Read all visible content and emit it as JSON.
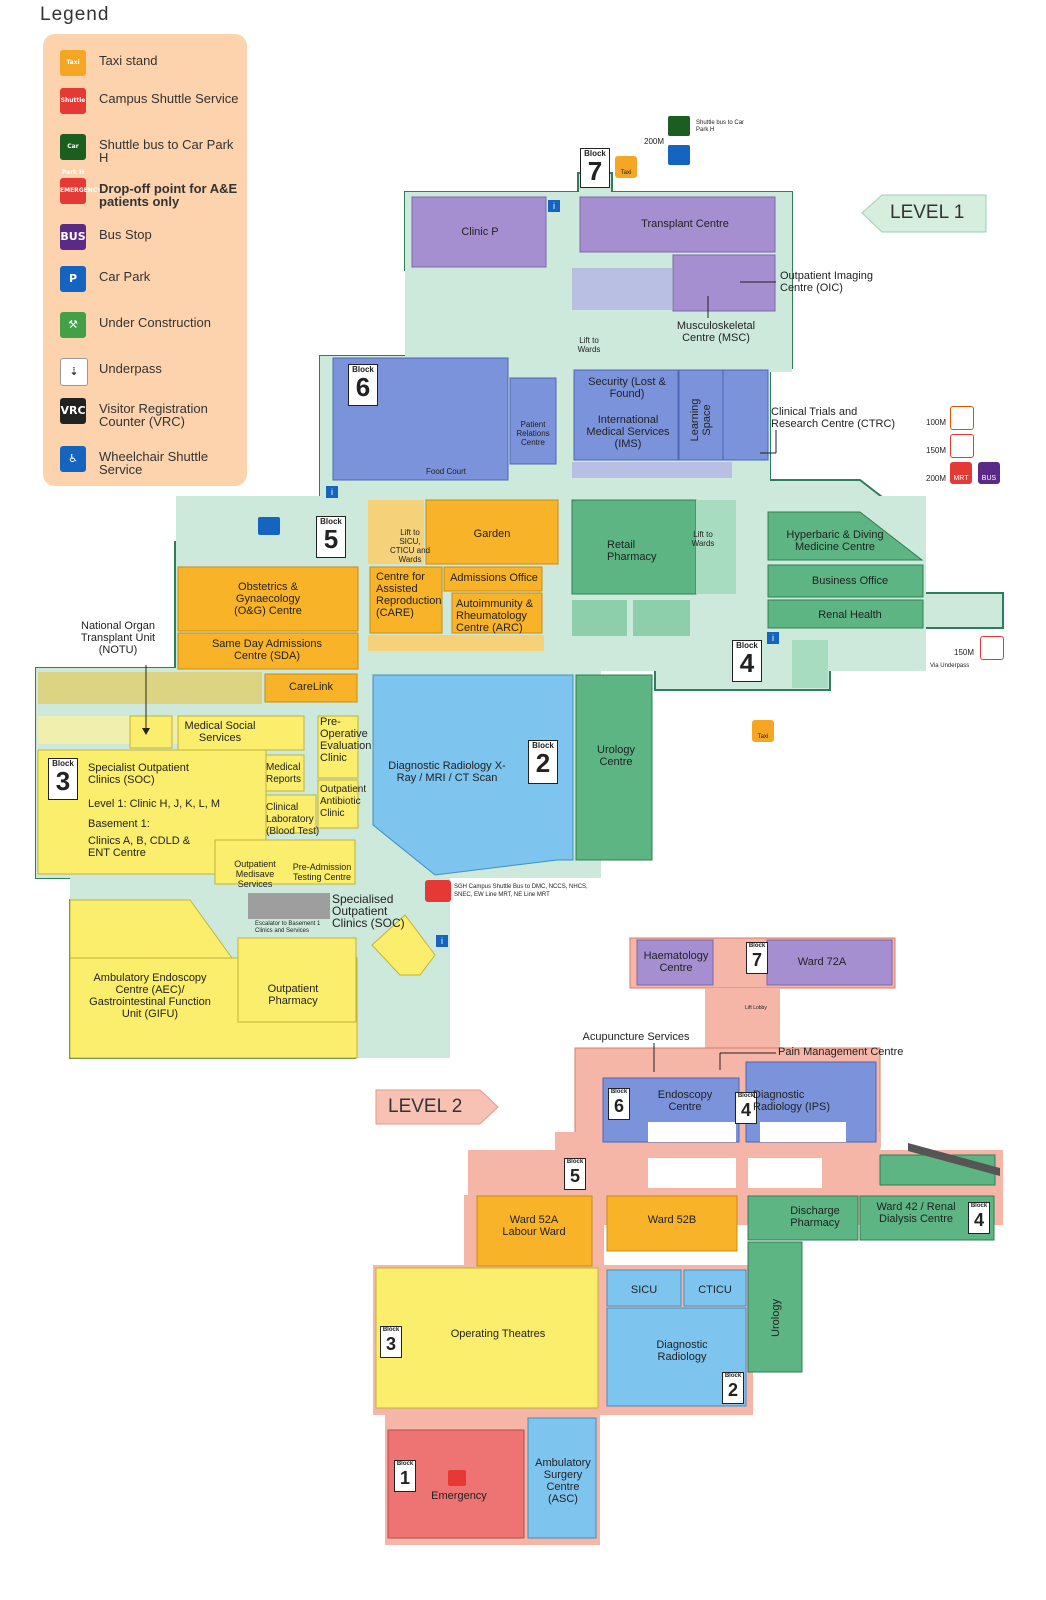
{
  "legend": {
    "title": "Legend",
    "items": [
      {
        "label": "Taxi stand",
        "icon": "taxi-icon",
        "color": "#f5a623",
        "glyph": "Taxi"
      },
      {
        "label": "Campus Shuttle Service",
        "icon": "campus-shuttle-icon",
        "color": "#e53935",
        "glyph": "Shuttle"
      },
      {
        "label": "Shuttle bus to Car Park H",
        "icon": "car-park-shuttle-icon",
        "color": "#1b5e20",
        "glyph": "Car Park H"
      },
      {
        "label": "Drop-off point for A&E patients only",
        "icon": "emergency-dropoff-icon",
        "color": "#e53935",
        "glyph": "EMERGENCY",
        "bold": true
      },
      {
        "label": "Bus Stop",
        "icon": "bus-stop-icon",
        "color": "#5b2a86",
        "glyph": "BUS"
      },
      {
        "label": "Car Park",
        "icon": "car-park-icon",
        "color": "#1565c0",
        "glyph": "P"
      },
      {
        "label": "Under Construction",
        "icon": "under-construction-icon",
        "color": "#43a047",
        "glyph": "⚒"
      },
      {
        "label": "Underpass",
        "icon": "underpass-icon",
        "color": "#ffffff",
        "glyph": "⇣"
      },
      {
        "label": "Visitor Registration Counter (VRC)",
        "icon": "visitor-registration-icon",
        "color": "#222222",
        "glyph": "VRC"
      },
      {
        "label": "Wheelchair Shuttle Service",
        "icon": "wheelchair-shuttle-icon",
        "color": "#1565c0",
        "glyph": "♿"
      }
    ]
  },
  "levels": {
    "level1": "LEVEL 1",
    "level2": "LEVEL 2"
  },
  "blocks": {
    "word": "Block",
    "b1": "1",
    "b2": "2",
    "b3": "3",
    "b4": "4",
    "b5": "5",
    "b6": "6",
    "b7": "7"
  },
  "level1": {
    "clinic_p": "Clinic P",
    "transplant_centre": "Transplant Centre",
    "oic": "Outpatient Imaging Centre (OIC)",
    "msc": "Musculoskeletal Centre (MSC)",
    "security": "Security (Lost & Found)",
    "ims": "International Medical Services (IMS)",
    "learning_space": "Learning Space",
    "patient_relations": "Patient Relations Centre",
    "food_court": "Food Court",
    "ctrc": "Clinical Trials and Research Centre (CTRC)",
    "lift_wards": "Lift to Wards",
    "lift_sicu": "Lift to SICU, CTICU and Wards",
    "garden": "Garden",
    "retail_pharmacy": "Retail Pharmacy",
    "hyperbaric": "Hyperbaric & Diving Medicine Centre",
    "business_office": "Business Office",
    "renal_health": "Renal Health",
    "og_centre": "Obstetrics & Gynaecology (O&G) Centre",
    "care": "Centre for Assisted Reproduction (CARE)",
    "admissions_office": "Admissions Office",
    "arc": "Autoimmunity & Rheumatology Centre (ARC)",
    "sda": "Same Day Admissions Centre (SDA)",
    "notu": "National Organ Transplant Unit (NOTU)",
    "carelink": "CareLink",
    "msw": "Medical Social Services",
    "pre_op": "Pre-Operative Evaluation Clinic",
    "soc": "Specialist Outpatient Clinics (SOC)",
    "soc_level1": "Level 1: Clinic H, J, K, L, M",
    "soc_basement": "Basement 1:",
    "soc_basement_clinics": "Clinics A, B, CDLD & ENT Centre",
    "medical_reports": "Medical Reports",
    "clinical_lab": "Clinical Laboratory (Blood Test)",
    "opat": "Outpatient Antibiotic Clinic",
    "medisave": "Outpatient Medisave Services",
    "pre_admission": "Pre-Admission Testing Centre",
    "radiology": "Diagnostic Radiology X-Ray / MRI / CT Scan",
    "urology": "Urology Centre",
    "specialised_soc": "Specialised Outpatient Clinics (SOC)",
    "escalator": "Escalator to Basement 1 Clinics and Services",
    "aec": "Ambulatory Endoscopy Centre (AEC)/ Gastrointestinal Function Unit (GIFU)",
    "outpatient_pharmacy": "Outpatient Pharmacy",
    "shuttle_note": "SGH Campus Shuttle Bus to DMC, NCCS, NHCS, SNEC, EW Line MRT, NE Line MRT",
    "shuttle_car_park_h": "Shuttle bus to Car Park H",
    "via_underpass": "Via Underpass",
    "dist_100": "100M",
    "dist_150": "150M",
    "dist_200": "200M",
    "dist_200_top": "200M",
    "dist_150_b4": "150M",
    "mrt": "MRT",
    "bus": "BUS",
    "taxi": "Taxi"
  },
  "level2": {
    "haematology": "Haematology Centre",
    "ward72a": "Ward 72A",
    "acupuncture": "Acupuncture Services",
    "pain_mgmt": "Pain Management Centre",
    "endoscopy": "Endoscopy Centre",
    "ips": "Diagnostic Radiology (IPS)",
    "ward52a": "Ward 52A Labour Ward",
    "ward52b": "Ward 52B",
    "discharge_pharmacy": "Discharge Pharmacy",
    "ward42": "Ward 42 / Renal Dialysis Centre",
    "sicu": "SICU",
    "cticu": "CTICU",
    "operating_theatres": "Operating Theatres",
    "diag_radiology": "Diagnostic Radiology",
    "urology": "Urology",
    "emergency": "Emergency",
    "asc": "Ambulatory Surgery Centre (ASC)",
    "lift_lobby": "Lift Lobby"
  },
  "colors": {
    "floor_l1": "#cde9dc",
    "floor_l2": "#f5b6a8",
    "purple": "#a58fd1",
    "blue": "#7b93db",
    "orange": "#f9b329",
    "green": "#5cb583",
    "lightblue": "#7dc4ef",
    "yellow": "#fbee6c",
    "red": "#ee7373",
    "olive": "#dcd483"
  }
}
